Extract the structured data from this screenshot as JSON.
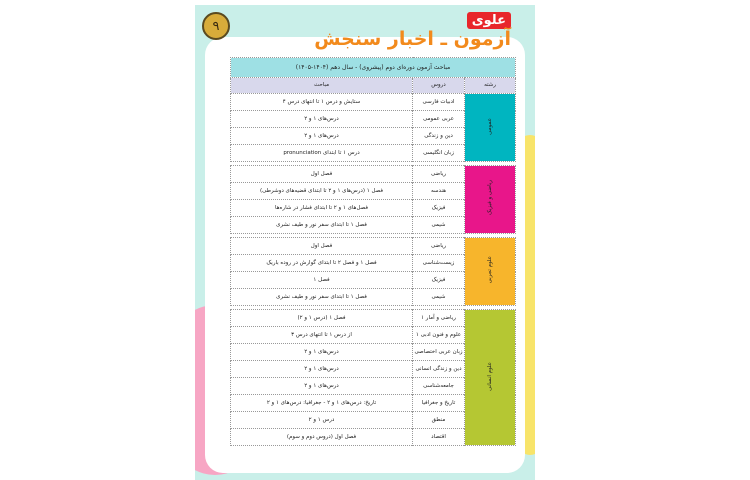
{
  "header": {
    "page_number": "۹",
    "brand": "علوی",
    "title": "آزمون ـ اخبار سنجش"
  },
  "table": {
    "caption": "مباحث آزمون دوره‌ای دوم (پیشروی) - سال دهم (۱۴۰۴-۱۴۰۵)",
    "columns": [
      "رشته",
      "دروس",
      "مباحث"
    ],
    "groups": [
      {
        "name": "عمومی",
        "color": "#00b5c0",
        "rows": [
          [
            "ادبیات فارسی",
            "ستایش و درس ۱ تا انتهای درس ۴"
          ],
          [
            "عربی عمومی",
            "درس‌های ۱ و ۲"
          ],
          [
            "دین و زندگی",
            "درس‌های ۱ و ۲"
          ],
          [
            "زبان انگلیسی",
            "درس ۱ تا ابتدای pronunciation"
          ]
        ]
      },
      {
        "name": "ریاضی و فیزیک",
        "color": "#e8168a",
        "rows": [
          [
            "ریاضی",
            "فصل اول"
          ],
          [
            "هندسه",
            "فصل ۱ (درس‌های ۱ و ۲ تا ابتدای قضیه‌های دوشرطی)"
          ],
          [
            "فیزیک",
            "فصل‌های ۱ و ۲ تا ابتدای فشار در شاره‌ها"
          ],
          [
            "شیمی",
            "فصل ۱ تا ابتدای سفر نور و طیف نشری"
          ]
        ]
      },
      {
        "name": "علوم تجربی",
        "color": "#f7b52c",
        "rows": [
          [
            "ریاضی",
            "فصل اول"
          ],
          [
            "زیست‌شناسی",
            "فصل ۱ و فصل ۲ تا ابتدای گوارش در روده باریک"
          ],
          [
            "فیزیک",
            "فصل ۱"
          ],
          [
            "شیمی",
            "فصل ۱ تا ابتدای سفر نور و طیف نشری"
          ]
        ]
      },
      {
        "name": "علوم انسانی",
        "color": "#b5c733",
        "rows": [
          [
            "ریاضی و آمار ۱",
            "فصل ۱ (درس ۱ و ۲)"
          ],
          [
            "علوم و فنون ادبی ۱",
            "از درس ۱ تا انتهای درس ۳"
          ],
          [
            "زبان عربی اختصاصی",
            "درس‌های ۱ و ۲"
          ],
          [
            "دین و زندگی انسانی",
            "درس‌های ۱ و ۲"
          ],
          [
            "جامعه‌شناسی",
            "درس‌های ۱ و ۲"
          ],
          [
            "تاریخ و جغرافیا",
            "تاریخ: درس‌های ۱ و ۲ - جغرافیا: درس‌های ۱ و ۲"
          ],
          [
            "منطق",
            "درس ۱ و ۲"
          ],
          [
            "اقتصاد",
            "فصل اول (دروس دوم و سوم)"
          ]
        ]
      }
    ]
  }
}
